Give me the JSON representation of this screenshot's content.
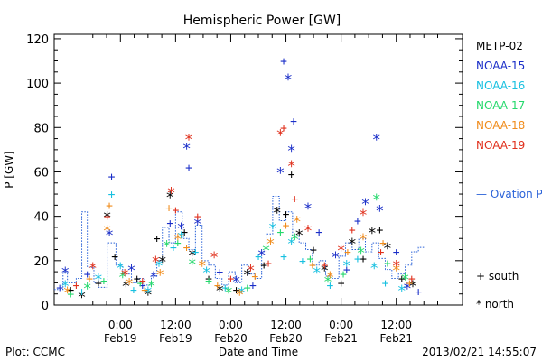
{
  "chart_data": {
    "type": "scatter",
    "title": "Hemispheric Power [GW]",
    "xlabel": "Date and Time",
    "ylabel": "P [GW]",
    "ylim": [
      0,
      122
    ],
    "xlim": [
      -0.6,
      3.1
    ],
    "yticks": [
      "0",
      "20",
      "40",
      "60",
      "80",
      "100",
      "120"
    ],
    "yticks_values": [
      0,
      20,
      40,
      60,
      80,
      100,
      120
    ],
    "xticks": [
      {
        "x": 0.0,
        "time": "0:00",
        "date": "Feb19"
      },
      {
        "x": 0.5,
        "time": "12:00",
        "date": "Feb19"
      },
      {
        "x": 1.0,
        "time": "0:00",
        "date": "Feb20"
      },
      {
        "x": 1.5,
        "time": "12:00",
        "date": "Feb20"
      },
      {
        "x": 2.0,
        "time": "0:00",
        "date": "Feb21"
      },
      {
        "x": 2.5,
        "time": "12:00",
        "date": "Feb21"
      }
    ],
    "x_unit_note": "days after 2013-02-19 00:00",
    "grid": false,
    "legend_position": "right",
    "legend": [
      "METP-02",
      "NOAA-15",
      "NOAA-16",
      "NOAA-17",
      "NOAA-18",
      "NOAA-19"
    ],
    "legend_ovation": "— Ovation Prime HPI",
    "legend_south": "+ south",
    "legend_north": "* north",
    "footer_left": "Plot: CCMC",
    "footer_right": "2013/02/21 14:55:07",
    "colors": {
      "METP-02": "#000000",
      "NOAA-15": "#1a2ec8",
      "NOAA-16": "#18c0e0",
      "NOAA-17": "#24d86c",
      "NOAA-18": "#f08c1c",
      "NOAA-19": "#e0301c",
      "ovation": "#2a62d8"
    },
    "series": [
      {
        "name": "METP-02",
        "points": [
          [
            -0.45,
            7,
            "+"
          ],
          [
            -0.35,
            4,
            "*"
          ],
          [
            -0.2,
            10,
            "+"
          ],
          [
            -0.12,
            40,
            "*"
          ],
          [
            -0.05,
            22,
            "+"
          ],
          [
            0.05,
            9,
            "*"
          ],
          [
            0.15,
            12,
            "+"
          ],
          [
            0.25,
            5,
            "*"
          ],
          [
            0.33,
            30,
            "+"
          ],
          [
            0.38,
            20,
            "*"
          ],
          [
            0.45,
            49,
            "*"
          ],
          [
            0.58,
            33,
            "+"
          ],
          [
            0.65,
            23,
            "*"
          ],
          [
            0.8,
            12,
            "+"
          ],
          [
            0.9,
            7,
            "*"
          ],
          [
            1.05,
            7,
            "+"
          ],
          [
            1.15,
            14,
            "*"
          ],
          [
            1.3,
            18,
            "+"
          ],
          [
            1.42,
            42,
            "*"
          ],
          [
            1.5,
            41,
            "+"
          ],
          [
            1.55,
            59,
            "+"
          ],
          [
            1.62,
            32,
            "*"
          ],
          [
            1.75,
            25,
            "+"
          ],
          [
            1.85,
            16,
            "*"
          ],
          [
            2.0,
            10,
            "+"
          ],
          [
            2.1,
            28,
            "*"
          ],
          [
            2.2,
            21,
            "+"
          ],
          [
            2.28,
            33,
            "*"
          ],
          [
            2.35,
            34,
            "+"
          ],
          [
            2.42,
            26,
            "*"
          ],
          [
            2.55,
            12,
            "+"
          ],
          [
            2.65,
            9,
            "*"
          ]
        ]
      },
      {
        "name": "NOAA-15",
        "points": [
          [
            -0.55,
            8,
            "+"
          ],
          [
            -0.5,
            15,
            "*"
          ],
          [
            -0.3,
            14,
            "+"
          ],
          [
            -0.1,
            32,
            "*"
          ],
          [
            -0.08,
            58,
            "+"
          ],
          [
            0.1,
            16,
            "*"
          ],
          [
            0.2,
            9,
            "+"
          ],
          [
            0.3,
            13,
            "*"
          ],
          [
            0.45,
            37,
            "+"
          ],
          [
            0.55,
            35,
            "*"
          ],
          [
            0.6,
            71,
            "*"
          ],
          [
            0.62,
            62,
            "+"
          ],
          [
            0.7,
            37,
            "*"
          ],
          [
            0.9,
            15,
            "+"
          ],
          [
            1.05,
            11,
            "*"
          ],
          [
            1.2,
            9,
            "+"
          ],
          [
            1.28,
            23,
            "*"
          ],
          [
            1.45,
            60,
            "*"
          ],
          [
            1.48,
            110,
            "+"
          ],
          [
            1.52,
            102,
            "*"
          ],
          [
            1.55,
            70,
            "*"
          ],
          [
            1.57,
            83,
            "+"
          ],
          [
            1.7,
            44,
            "*"
          ],
          [
            1.8,
            33,
            "+"
          ],
          [
            1.95,
            22,
            "*"
          ],
          [
            2.05,
            16,
            "+"
          ],
          [
            2.15,
            38,
            "+"
          ],
          [
            2.22,
            46,
            "*"
          ],
          [
            2.32,
            75,
            "*"
          ],
          [
            2.35,
            43,
            "*"
          ],
          [
            2.5,
            24,
            "+"
          ],
          [
            2.6,
            8,
            "*"
          ],
          [
            2.7,
            6,
            "+"
          ]
        ]
      },
      {
        "name": "NOAA-16",
        "points": [
          [
            -0.5,
            9,
            "*"
          ],
          [
            -0.35,
            6,
            "+"
          ],
          [
            -0.2,
            12,
            "*"
          ],
          [
            -0.08,
            50,
            "+"
          ],
          [
            0.0,
            17,
            "*"
          ],
          [
            0.12,
            7,
            "+"
          ],
          [
            0.25,
            6,
            "*"
          ],
          [
            0.35,
            18,
            "*"
          ],
          [
            0.48,
            26,
            "+"
          ],
          [
            0.55,
            31,
            "*"
          ],
          [
            0.68,
            24,
            "+"
          ],
          [
            0.78,
            15,
            "*"
          ],
          [
            0.95,
            8,
            "+"
          ],
          [
            1.1,
            6,
            "*"
          ],
          [
            1.25,
            22,
            "+"
          ],
          [
            1.38,
            35,
            "*"
          ],
          [
            1.48,
            22,
            "+"
          ],
          [
            1.55,
            28,
            "*"
          ],
          [
            1.65,
            20,
            "+"
          ],
          [
            1.78,
            15,
            "*"
          ],
          [
            1.9,
            9,
            "+"
          ],
          [
            2.05,
            18,
            "*"
          ],
          [
            2.15,
            21,
            "+"
          ],
          [
            2.3,
            17,
            "*"
          ],
          [
            2.4,
            10,
            "+"
          ],
          [
            2.55,
            7,
            "*"
          ]
        ]
      },
      {
        "name": "NOAA-17",
        "points": [
          [
            -0.45,
            5,
            "+"
          ],
          [
            -0.3,
            8,
            "*"
          ],
          [
            -0.15,
            11,
            "+"
          ],
          [
            0.02,
            13,
            "*"
          ],
          [
            0.18,
            10,
            "+"
          ],
          [
            0.28,
            9,
            "*"
          ],
          [
            0.42,
            27,
            "*"
          ],
          [
            0.52,
            28,
            "+"
          ],
          [
            0.65,
            19,
            "*"
          ],
          [
            0.8,
            11,
            "+"
          ],
          [
            0.98,
            6,
            "*"
          ],
          [
            1.15,
            8,
            "+"
          ],
          [
            1.32,
            25,
            "*"
          ],
          [
            1.45,
            33,
            "+"
          ],
          [
            1.58,
            30,
            "*"
          ],
          [
            1.72,
            21,
            "+"
          ],
          [
            1.88,
            11,
            "*"
          ],
          [
            2.02,
            14,
            "+"
          ],
          [
            2.18,
            24,
            "*"
          ],
          [
            2.32,
            48,
            "*"
          ],
          [
            2.42,
            19,
            "+"
          ],
          [
            2.58,
            12,
            "*"
          ]
        ]
      },
      {
        "name": "NOAA-18",
        "points": [
          [
            -0.48,
            6,
            "*"
          ],
          [
            -0.28,
            12,
            "+"
          ],
          [
            -0.12,
            34,
            "*"
          ],
          [
            -0.1,
            45,
            "+"
          ],
          [
            0.08,
            10,
            "*"
          ],
          [
            0.22,
            7,
            "+"
          ],
          [
            0.36,
            14,
            "*"
          ],
          [
            0.44,
            44,
            "+"
          ],
          [
            0.52,
            30,
            "*"
          ],
          [
            0.6,
            26,
            "+"
          ],
          [
            0.74,
            18,
            "*"
          ],
          [
            0.88,
            9,
            "+"
          ],
          [
            1.08,
            5,
            "*"
          ],
          [
            1.22,
            13,
            "+"
          ],
          [
            1.36,
            28,
            "*"
          ],
          [
            1.5,
            36,
            "+"
          ],
          [
            1.6,
            38,
            "*"
          ],
          [
            1.74,
            18,
            "+"
          ],
          [
            1.9,
            13,
            "*"
          ],
          [
            2.06,
            24,
            "+"
          ],
          [
            2.2,
            30,
            "*"
          ],
          [
            2.38,
            28,
            "+"
          ],
          [
            2.5,
            16,
            "*"
          ],
          [
            2.62,
            10,
            "+"
          ]
        ]
      },
      {
        "name": "NOAA-19",
        "points": [
          [
            -0.4,
            9,
            "+"
          ],
          [
            -0.25,
            17,
            "*"
          ],
          [
            -0.12,
            40,
            "+"
          ],
          [
            0.04,
            14,
            "*"
          ],
          [
            0.2,
            11,
            "+"
          ],
          [
            0.32,
            20,
            "*"
          ],
          [
            0.46,
            51,
            "*"
          ],
          [
            0.5,
            43,
            "+"
          ],
          [
            0.62,
            75,
            "*"
          ],
          [
            0.7,
            40,
            "+"
          ],
          [
            0.85,
            22,
            "*"
          ],
          [
            1.0,
            12,
            "+"
          ],
          [
            1.18,
            16,
            "*"
          ],
          [
            1.34,
            19,
            "+"
          ],
          [
            1.45,
            77,
            "*"
          ],
          [
            1.48,
            80,
            "+"
          ],
          [
            1.55,
            63,
            "*"
          ],
          [
            1.58,
            48,
            "+"
          ],
          [
            1.7,
            34,
            "*"
          ],
          [
            1.85,
            18,
            "+"
          ],
          [
            2.0,
            25,
            "*"
          ],
          [
            2.1,
            34,
            "+"
          ],
          [
            2.2,
            41,
            "*"
          ],
          [
            2.36,
            24,
            "+"
          ],
          [
            2.5,
            18,
            "*"
          ],
          [
            2.64,
            12,
            "+"
          ]
        ]
      }
    ],
    "ovation_steps": [
      [
        -0.6,
        7
      ],
      [
        -0.52,
        15
      ],
      [
        -0.48,
        10
      ],
      [
        -0.4,
        12
      ],
      [
        -0.35,
        42
      ],
      [
        -0.3,
        17
      ],
      [
        -0.24,
        10
      ],
      [
        -0.2,
        8
      ],
      [
        -0.12,
        28
      ],
      [
        -0.04,
        18
      ],
      [
        0.02,
        14
      ],
      [
        0.1,
        10
      ],
      [
        0.16,
        12
      ],
      [
        0.22,
        9
      ],
      [
        0.28,
        13
      ],
      [
        0.33,
        20
      ],
      [
        0.38,
        35
      ],
      [
        0.44,
        28
      ],
      [
        0.5,
        42
      ],
      [
        0.56,
        30
      ],
      [
        0.62,
        25
      ],
      [
        0.68,
        36
      ],
      [
        0.74,
        20
      ],
      [
        0.8,
        18
      ],
      [
        0.86,
        12
      ],
      [
        0.92,
        9
      ],
      [
        0.98,
        15
      ],
      [
        1.04,
        10
      ],
      [
        1.1,
        18
      ],
      [
        1.16,
        14
      ],
      [
        1.22,
        12
      ],
      [
        1.28,
        24
      ],
      [
        1.32,
        32
      ],
      [
        1.38,
        49
      ],
      [
        1.44,
        38
      ],
      [
        1.5,
        42
      ],
      [
        1.56,
        31
      ],
      [
        1.62,
        28
      ],
      [
        1.68,
        25
      ],
      [
        1.74,
        18
      ],
      [
        1.8,
        20
      ],
      [
        1.86,
        13
      ],
      [
        1.92,
        12
      ],
      [
        1.98,
        22
      ],
      [
        2.04,
        28
      ],
      [
        2.1,
        25
      ],
      [
        2.16,
        30
      ],
      [
        2.22,
        24
      ],
      [
        2.28,
        28
      ],
      [
        2.34,
        21
      ],
      [
        2.4,
        16
      ],
      [
        2.46,
        12
      ],
      [
        2.52,
        14
      ],
      [
        2.58,
        18
      ],
      [
        2.64,
        24
      ],
      [
        2.7,
        26
      ]
    ]
  }
}
